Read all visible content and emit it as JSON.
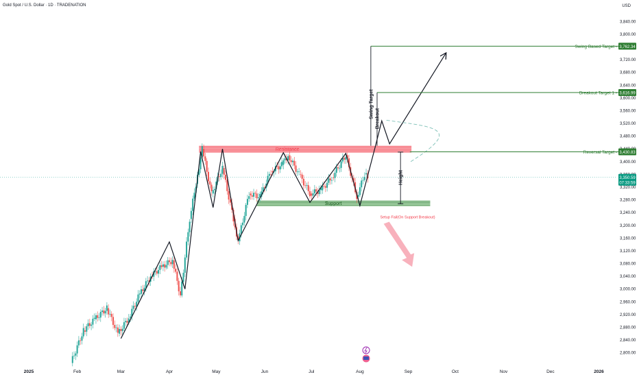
{
  "header": {
    "title": "Gold Spot / U.S. Dollar · 1D · TRADENATION",
    "currency": "USD"
  },
  "colors": {
    "up": "#26a69a",
    "down": "#ef5350",
    "resistance": "#f23645",
    "support": "#4caf50",
    "target": "#2e7d32",
    "price_badge": "#089981",
    "dashed_arc": "#7bbfb5",
    "bear_arrow": "#f7a8b5"
  },
  "chart_data": {
    "type": "line",
    "ylim": [
      2780,
      3860
    ],
    "y_ticks": [
      "3,840.00",
      "3,800.00",
      "3,760.00",
      "3,720.00",
      "3,680.00",
      "3,640.00",
      "3,600.00",
      "3,560.00",
      "3,520.00",
      "3,480.00",
      "3,440.00",
      "3,400.00",
      "3,360.00",
      "3,320.00",
      "3,280.00",
      "3,240.00",
      "3,200.00",
      "3,160.00",
      "3,120.00",
      "3,080.00",
      "3,040.00",
      "3,000.00",
      "2,960.00",
      "2,920.00",
      "2,880.00",
      "2,840.00",
      "2,800.00"
    ],
    "x_ticks": [
      "2025",
      "Feb",
      "Mar",
      "Apr",
      "May",
      "Jun",
      "Jul",
      "Aug",
      "Sep",
      "Oct",
      "Nov",
      "Dec",
      "2026"
    ],
    "price_series": [
      {
        "date": "2025-01-28",
        "price": 2768
      },
      {
        "date": "2025-02-05",
        "price": 2870
      },
      {
        "date": "2025-02-12",
        "price": 2905
      },
      {
        "date": "2025-02-20",
        "price": 2940
      },
      {
        "date": "2025-02-27",
        "price": 2860
      },
      {
        "date": "2025-03-06",
        "price": 2910
      },
      {
        "date": "2025-03-13",
        "price": 2985
      },
      {
        "date": "2025-03-20",
        "price": 3040
      },
      {
        "date": "2025-03-27",
        "price": 3070
      },
      {
        "date": "2025-04-03",
        "price": 3090
      },
      {
        "date": "2025-04-08",
        "price": 2980
      },
      {
        "date": "2025-04-14",
        "price": 3220
      },
      {
        "date": "2025-04-18",
        "price": 3330
      },
      {
        "date": "2025-04-22",
        "price": 3440
      },
      {
        "date": "2025-04-28",
        "price": 3300
      },
      {
        "date": "2025-05-05",
        "price": 3380
      },
      {
        "date": "2025-05-12",
        "price": 3220
      },
      {
        "date": "2025-05-15",
        "price": 3150
      },
      {
        "date": "2025-05-22",
        "price": 3300
      },
      {
        "date": "2025-05-29",
        "price": 3290
      },
      {
        "date": "2025-06-05",
        "price": 3370
      },
      {
        "date": "2025-06-12",
        "price": 3390
      },
      {
        "date": "2025-06-16",
        "price": 3420
      },
      {
        "date": "2025-06-23",
        "price": 3360
      },
      {
        "date": "2025-06-30",
        "price": 3300
      },
      {
        "date": "2025-07-07",
        "price": 3310
      },
      {
        "date": "2025-07-14",
        "price": 3350
      },
      {
        "date": "2025-07-23",
        "price": 3420
      },
      {
        "date": "2025-07-30",
        "price": 3290
      },
      {
        "date": "2025-08-04",
        "price": 3360
      },
      {
        "date": "2025-08-06",
        "price": 3350
      }
    ],
    "pattern_path": [
      {
        "date": "2025-03-01",
        "price": 2845
      },
      {
        "date": "2025-04-01",
        "price": 3148
      },
      {
        "date": "2025-04-11",
        "price": 3000
      },
      {
        "date": "2025-04-21",
        "price": 3432
      },
      {
        "date": "2025-04-29",
        "price": 3256
      },
      {
        "date": "2025-05-05",
        "price": 3440
      },
      {
        "date": "2025-05-15",
        "price": 3152
      },
      {
        "date": "2025-06-13",
        "price": 3428
      },
      {
        "date": "2025-06-30",
        "price": 3272
      },
      {
        "date": "2025-07-23",
        "price": 3426
      },
      {
        "date": "2025-08-01",
        "price": 3262
      },
      {
        "date": "2025-08-11",
        "price": 3450
      },
      {
        "date": "2025-08-15",
        "price": 3528
      },
      {
        "date": "2025-08-20",
        "price": 3456
      },
      {
        "date": "2025-09-25",
        "price": 3740
      }
    ],
    "resistance_zone": {
      "label": "Resistance",
      "top": 3450,
      "bottom": 3428,
      "start": "2025-04-20",
      "end": "2025-09-03"
    },
    "support_zone": {
      "label": "Support",
      "top": 3278,
      "bottom": 3260,
      "start": "2025-05-27",
      "end": "2025-09-15"
    },
    "levels": [
      {
        "label": "Swing Based Target",
        "value": 3762.34,
        "badge": "3,762.34",
        "start": "2025-08-08"
      },
      {
        "label": "Breakout Target 1",
        "value": 3616.99,
        "badge": "3,616.99",
        "start": "2025-08-12"
      },
      {
        "label": "Reversal Target",
        "value": 3430.83,
        "badge": "3,430.83",
        "start": "2025-09-02"
      }
    ],
    "current_price": {
      "value": 3350.59,
      "badge": "3,350.59",
      "countdown": "07:33:59"
    },
    "annotations": {
      "swing_target": "Swing Target",
      "breakout": "Breakout",
      "height": "Height",
      "setup_fail": "Setup Fail(On Support Breakout)"
    },
    "grid": false,
    "legend": "none"
  }
}
